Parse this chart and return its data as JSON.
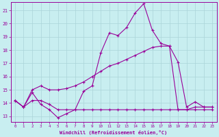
{
  "xlabel": "Windchill (Refroidissement éolien,°C)",
  "bg_color": "#c8eef0",
  "grid_color": "#aad4d8",
  "line_color": "#990099",
  "ylim": [
    12.6,
    21.6
  ],
  "xlim": [
    -0.5,
    23.5
  ],
  "yticks": [
    13,
    14,
    15,
    16,
    17,
    18,
    19,
    20,
    21
  ],
  "xticks": [
    0,
    1,
    2,
    3,
    4,
    5,
    6,
    7,
    8,
    9,
    10,
    11,
    12,
    13,
    14,
    15,
    16,
    17,
    18,
    19,
    20,
    21,
    22,
    23
  ],
  "line1_x": [
    0,
    1,
    2,
    3,
    4,
    5,
    6,
    7,
    8,
    9,
    10,
    11,
    12,
    13,
    14,
    15,
    16,
    17,
    18,
    19,
    20,
    21,
    22,
    23
  ],
  "line1_y": [
    14.2,
    13.7,
    14.8,
    13.9,
    13.5,
    12.9,
    13.2,
    13.5,
    14.9,
    15.3,
    17.8,
    19.3,
    19.1,
    19.7,
    20.8,
    21.5,
    19.5,
    18.5,
    18.3,
    17.1,
    13.7,
    14.1,
    13.7,
    13.7
  ],
  "line2_x": [
    0,
    1,
    2,
    3,
    4,
    5,
    6,
    7,
    8,
    9,
    10,
    11,
    12,
    13,
    14,
    15,
    16,
    17,
    18,
    19,
    20,
    21,
    22,
    23
  ],
  "line2_y": [
    14.2,
    13.7,
    15.0,
    15.3,
    15.0,
    15.0,
    15.1,
    15.3,
    15.6,
    16.0,
    16.4,
    16.8,
    17.0,
    17.3,
    17.6,
    17.9,
    18.2,
    18.3,
    18.3,
    13.5,
    13.5,
    13.5,
    13.5,
    13.5
  ],
  "line3_x": [
    0,
    1,
    2,
    3,
    4,
    5,
    6,
    7,
    8,
    9,
    10,
    11,
    12,
    13,
    14,
    15,
    16,
    17,
    18,
    19,
    20,
    21,
    22,
    23
  ],
  "line3_y": [
    14.2,
    13.7,
    14.2,
    14.2,
    13.9,
    13.5,
    13.5,
    13.5,
    13.5,
    13.5,
    13.5,
    13.5,
    13.5,
    13.5,
    13.5,
    13.5,
    13.5,
    13.5,
    13.5,
    13.5,
    13.5,
    13.7,
    13.7,
    13.7
  ]
}
